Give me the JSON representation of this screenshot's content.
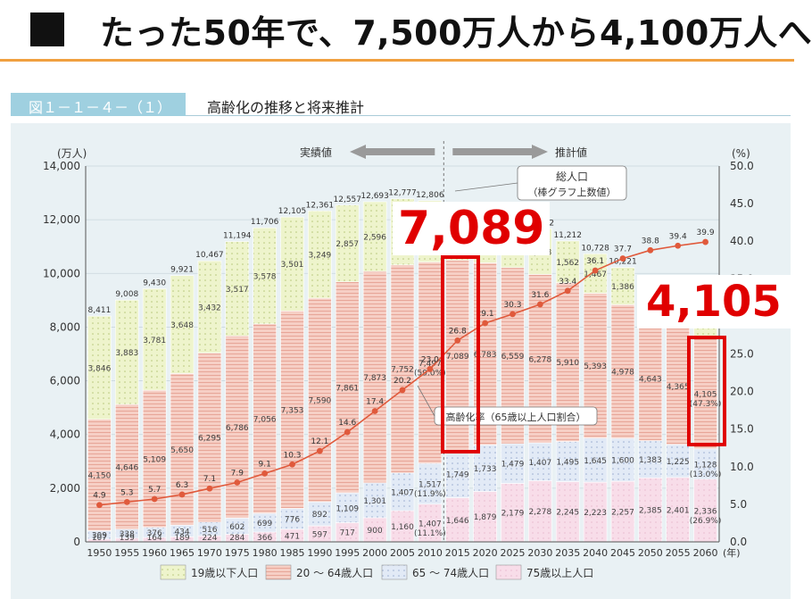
{
  "slide": {
    "title": "たった50年で、7,500万人から4,100万人へ"
  },
  "figure": {
    "label": "図１－１－４－（１）",
    "title": "高齢化の推移と将来推計"
  },
  "callouts": {
    "value_2015": "7,089",
    "value_2060": "4,105"
  },
  "chart_data": {
    "type": "bar",
    "stacked": true,
    "categories": [
      "1950",
      "1955",
      "1960",
      "1965",
      "1970",
      "1975",
      "1980",
      "1985",
      "1990",
      "1995",
      "2000",
      "2005",
      "2010",
      "2015",
      "2020",
      "2025",
      "2030",
      "2035",
      "2040",
      "2045",
      "2050",
      "2055",
      "2060"
    ],
    "x_unit": "(年)",
    "ylabel_left": "(万人)",
    "ylabel_right": "(%)",
    "ylim": [
      0,
      14000
    ],
    "ylim_right": [
      0,
      50
    ],
    "yticks": [
      "0",
      "2,000",
      "4,000",
      "6,000",
      "8,000",
      "10,000",
      "12,000",
      "14,000"
    ],
    "yticks_right": [
      "0.0",
      "5.0",
      "10.0",
      "15.0",
      "20.0",
      "25.0",
      "30.0",
      "35.0",
      "40.0",
      "45.0",
      "50.0"
    ],
    "series": [
      {
        "name": "75歳以上人口",
        "color": "#f6d8e6",
        "values": [
          107,
          139,
          164,
          189,
          224,
          284,
          366,
          471,
          597,
          717,
          900,
          1160,
          1407,
          1646,
          1879,
          2179,
          2278,
          2245,
          2223,
          2257,
          2385,
          2401,
          2336
        ],
        "labels": [
          "107",
          "139",
          "164",
          "189",
          "224",
          "284",
          "366",
          "471",
          "597",
          "717",
          "900",
          "1,160",
          "1,407",
          "1,646",
          "1,879",
          "2,179",
          "2,278",
          "2,245",
          "2,223",
          "2,257",
          "2,385",
          "2,401",
          "2,336"
        ]
      },
      {
        "name": "65 ～ 74歳人口",
        "color": "#dde6f4",
        "values": [
          309,
          338,
          376,
          434,
          516,
          602,
          699,
          776,
          892,
          1109,
          1301,
          1407,
          1517,
          1749,
          1733,
          1479,
          1407,
          1495,
          1645,
          1600,
          1383,
          1225,
          1128
        ],
        "labels": [
          "309",
          "338",
          "376",
          "434",
          "516",
          "602",
          "699",
          "776",
          "892",
          "1,109",
          "1,301",
          "1,407",
          "1,517",
          "1,749",
          "1,733",
          "1,479",
          "1,407",
          "1,495",
          "1,645",
          "1,600",
          "1,383",
          "1,225",
          "1,128"
        ]
      },
      {
        "name": "20 ～ 64歳人口",
        "color": "#f4c8be",
        "values": [
          4150,
          4646,
          5109,
          5650,
          6295,
          6786,
          7056,
          7353,
          7590,
          7861,
          7873,
          7752,
          7497,
          7089,
          6783,
          6559,
          6278,
          5910,
          5393,
          4978,
          4643,
          4365,
          4105
        ],
        "labels": [
          "4,150",
          "4,646",
          "5,109",
          "5,650",
          "6,295",
          "6,786",
          "7,056",
          "7,353",
          "7,590",
          "7,861",
          "7,873",
          "7,752",
          "7,497",
          "7,089",
          "6,783",
          "6,559",
          "6,278",
          "5,910",
          "5,393",
          "4,978",
          "4,643",
          "4,365",
          "4,105"
        ]
      },
      {
        "name": "19歳以下人口",
        "color": "#eef4cc",
        "values": [
          3846,
          3883,
          3781,
          3648,
          3432,
          3517,
          3578,
          3501,
          3249,
          2857,
          2596,
          2459,
          2290,
          2100,
          1920,
          1800,
          1698,
          1562,
          1467,
          1386,
          1300,
          1215,
          1128
        ],
        "labels": [
          "3,846",
          "3,883",
          "3,781",
          "3,648",
          "3,432",
          "3,517",
          "3,578",
          "3,501",
          "3,249",
          "2,857",
          "2,596",
          "",
          "",
          "",
          "",
          "",
          "1,698",
          "1,562",
          "1,467",
          "1,386",
          "",
          "",
          ""
        ]
      }
    ],
    "totals": [
      8411,
      9008,
      9430,
      9921,
      10467,
      11194,
      11706,
      12105,
      12361,
      12557,
      12693,
      12777,
      12806,
      12660,
      12410,
      12066,
      11662,
      11212,
      10728,
      10221,
      9708,
      9193,
      8674
    ],
    "total_labels": [
      "8,411",
      "9,008",
      "9,430",
      "9,921",
      "10,467",
      "11,194",
      "11,706",
      "12,105",
      "12,361",
      "12,557",
      "12,693",
      "12,777",
      "12,806",
      "",
      "",
      "",
      "11,662",
      "11,212",
      "10,728",
      "10,221",
      "",
      "",
      ""
    ],
    "aging_rate": {
      "name": "高齢化率（65歳以上人口割合）",
      "values": [
        4.9,
        5.3,
        5.7,
        6.3,
        7.1,
        7.9,
        9.1,
        10.3,
        12.1,
        14.6,
        17.4,
        20.2,
        23.0,
        26.8,
        29.1,
        30.3,
        31.6,
        33.4,
        36.1,
        37.7,
        38.8,
        39.4,
        39.9
      ],
      "labels": [
        "4.9",
        "5.3",
        "5.7",
        "6.3",
        "7.1",
        "7.9",
        "9.1",
        "10.3",
        "12.1",
        "14.6",
        "17.4",
        "20.2",
        "23.0",
        "26.8",
        "29.1",
        "30.3",
        "31.6",
        "33.4",
        "36.1",
        "37.7",
        "38.8",
        "39.4",
        "39.9"
      ],
      "color": "#e05a3c"
    },
    "extra_labels": [
      {
        "x": "2010",
        "series": "20 ～ 64歳人口",
        "text": "(59.0%)"
      },
      {
        "x": "2010",
        "series": "65 ～ 74歳人口",
        "text": "(11.9%)"
      },
      {
        "x": "2010",
        "series": "75歳以上人口",
        "text": "(11.1%)"
      },
      {
        "x": "2060",
        "series": "20 ～ 64歳人口",
        "text": "(47.3%)"
      },
      {
        "x": "2060",
        "series": "65 ～ 74歳人口",
        "text": "(13.0%)"
      },
      {
        "x": "2060",
        "series": "75歳以上人口",
        "text": "(26.9%)"
      }
    ],
    "annotations": {
      "actual": "実績値",
      "projection": "推計値",
      "total_note_1": "総人口",
      "total_note_2": "（棒グラフ上数値）",
      "aging_note": "高齢化率（65歳以上人口割合）"
    },
    "legend": [
      "19歳以下人口",
      "20 ～ 64歳人口",
      "65 ～ 74歳人口",
      "75歳以上人口"
    ],
    "legend_position": "bottom"
  }
}
